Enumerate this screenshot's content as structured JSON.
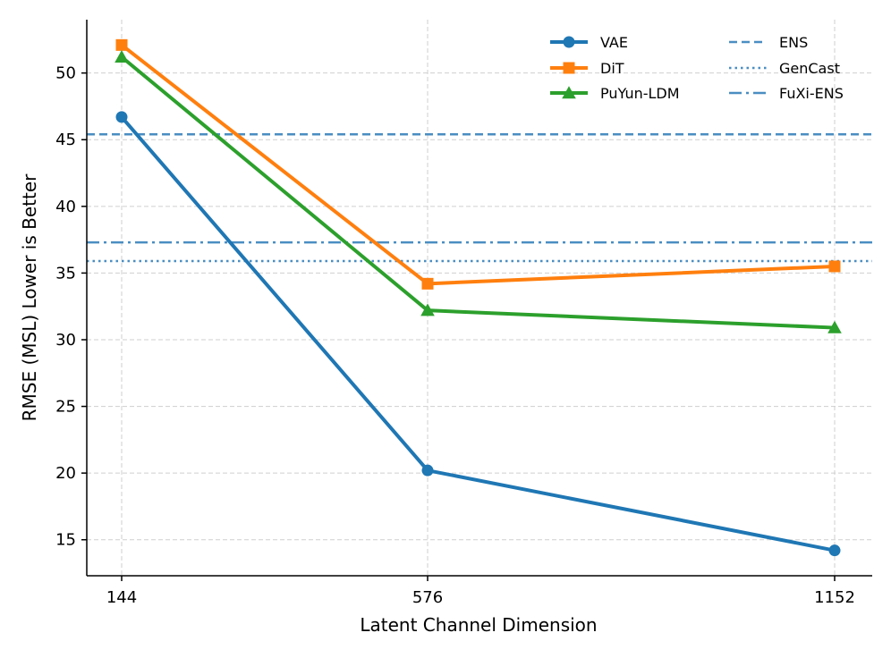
{
  "chart_data": {
    "type": "line",
    "title": "",
    "xlabel": "Latent Channel Dimension",
    "ylabel": "RMSE (MSL) Lower is Better",
    "categories": [
      "144",
      "576",
      "1152"
    ],
    "ylim": [
      12.3,
      54
    ],
    "yticks": [
      15,
      20,
      25,
      30,
      35,
      40,
      45,
      50
    ],
    "grid": true,
    "legend_position": "top-right",
    "series": [
      {
        "name": "VAE",
        "values": [
          46.7,
          20.2,
          14.2
        ],
        "color": "#1f77b4",
        "marker": "circle"
      },
      {
        "name": "DiT",
        "values": [
          52.1,
          34.2,
          35.5
        ],
        "color": "#ff7f0e",
        "marker": "square"
      },
      {
        "name": "PuYun-LDM",
        "values": [
          51.2,
          32.2,
          30.9
        ],
        "color": "#2ca02c",
        "marker": "triangle"
      }
    ],
    "reference_lines": [
      {
        "name": "ENS",
        "value": 45.4,
        "color": "#4a8ec2",
        "style": "dashed"
      },
      {
        "name": "GenCast",
        "value": 35.9,
        "color": "#4a8ec2",
        "style": "dotted"
      },
      {
        "name": "FuXi-ENS",
        "value": 37.3,
        "color": "#4a8ec2",
        "style": "dashdot"
      }
    ]
  }
}
